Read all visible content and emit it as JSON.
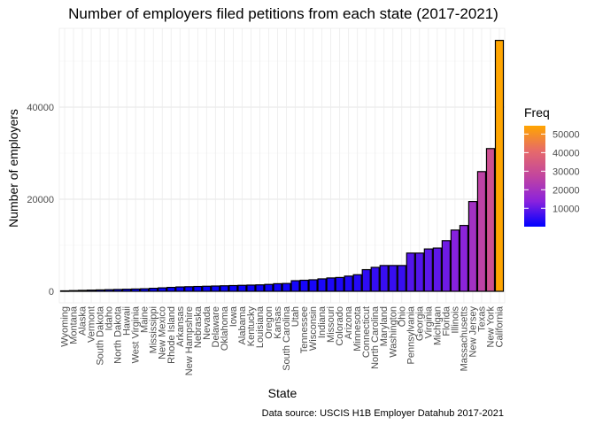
{
  "chart_data": {
    "type": "bar",
    "title": "Number of employers filed petitions from each state (2017-2021)",
    "xlabel": "State",
    "ylabel": "Number of employers",
    "caption": "Data source: USCIS H1B Employer Datahub 2017-2021",
    "ylim": [
      0,
      54500
    ],
    "y_ticks": [
      "0",
      "20000",
      "40000"
    ],
    "grid": true,
    "legend": {
      "title": "Freq",
      "position": "right",
      "labels": [
        "10000",
        "20000",
        "30000",
        "40000",
        "50000"
      ],
      "colors": [
        "#0000ff",
        "#8a22dd",
        "#c2459f",
        "#e66a6a",
        "#ffa500"
      ]
    },
    "categories": [
      "Wyoming",
      "Montana",
      "Alaska",
      "Vermont",
      "South Dakota",
      "Idaho",
      "North Dakota",
      "Hawaii",
      "West Virginia",
      "Maine",
      "Mississippi",
      "New Mexico",
      "Rhode Island",
      "Arkansas",
      "New Hampshire",
      "Nebraska",
      "Nevada",
      "Delaware",
      "Oklahoma",
      "Iowa",
      "Alabama",
      "Kentucky",
      "Louisiana",
      "Oregon",
      "Kansas",
      "South Carolina",
      "Utah",
      "Tennessee",
      "Wisconsin",
      "Indiana",
      "Missouri",
      "Colorado",
      "Arizona",
      "Minnesota",
      "Connecticut",
      "North Carolina",
      "Maryland",
      "Washington",
      "Ohio",
      "Pennsylvania",
      "Georgia",
      "Virginia",
      "Michigan",
      "Florida",
      "Illinois",
      "Massachusetts",
      "New Jersey",
      "Texas",
      "New York",
      "California"
    ],
    "values": [
      100,
      150,
      200,
      250,
      300,
      350,
      400,
      450,
      500,
      550,
      650,
      750,
      850,
      950,
      1000,
      1050,
      1100,
      1150,
      1200,
      1250,
      1300,
      1350,
      1400,
      1500,
      1650,
      1700,
      2300,
      2400,
      2500,
      2700,
      2900,
      3000,
      3300,
      3600,
      4700,
      5200,
      5600,
      5600,
      5600,
      8300,
      8300,
      9200,
      9400,
      11000,
      13300,
      14300,
      19500,
      26000,
      31000,
      54500
    ]
  }
}
